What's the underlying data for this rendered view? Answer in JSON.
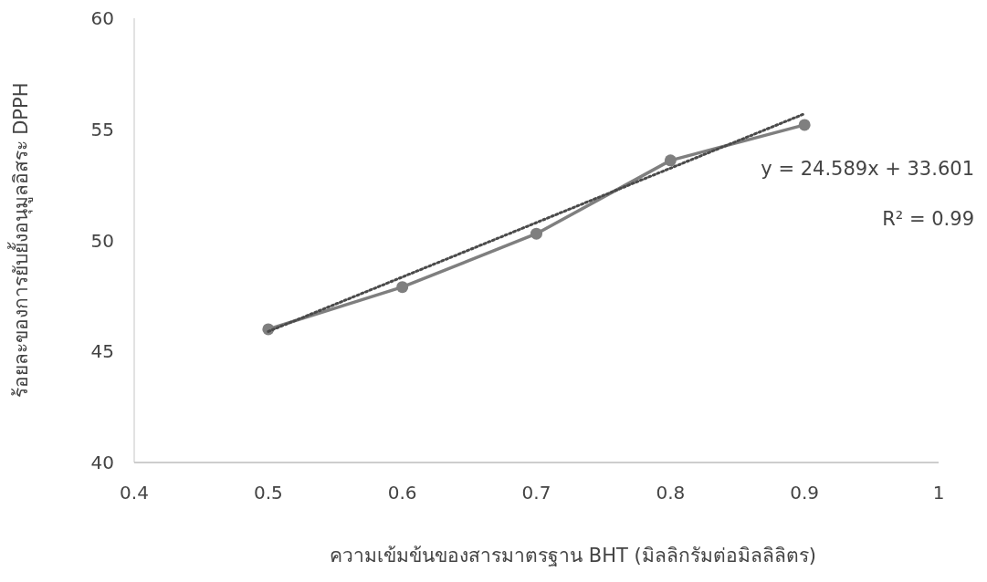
{
  "chart_data": {
    "type": "line",
    "xlabel": "ความเข้มข้นของสารมาตรฐาน BHT (มิลลิกรัมต่อมิลลิลิตร)",
    "ylabel": "ร้อยละของการยับยั้งอนุมูลอิสระ DPPH",
    "xlim": [
      0.4,
      1
    ],
    "xticks": [
      0.4,
      0.5,
      0.6,
      0.7,
      0.8,
      0.9,
      1
    ],
    "ylim": [
      40,
      60
    ],
    "yticks": [
      40,
      45,
      50,
      55,
      60
    ],
    "grid": false,
    "series": [
      {
        "color": "#7f7f7f",
        "x": [
          0.5,
          0.6,
          0.7,
          0.8,
          0.9
        ],
        "values": [
          46.0,
          47.9,
          50.3,
          53.6,
          55.2
        ],
        "marker": "circle",
        "line_style": "solid"
      },
      {
        "type": "line",
        "color": "#4a4a4a",
        "x": [
          0.5,
          0.9
        ],
        "values": [
          45.9,
          55.7
        ],
        "marker": "none",
        "line_style": "dotted"
      }
    ],
    "annotations": [
      "y = 24.589x + 33.601",
      "R² = 0.99"
    ]
  }
}
